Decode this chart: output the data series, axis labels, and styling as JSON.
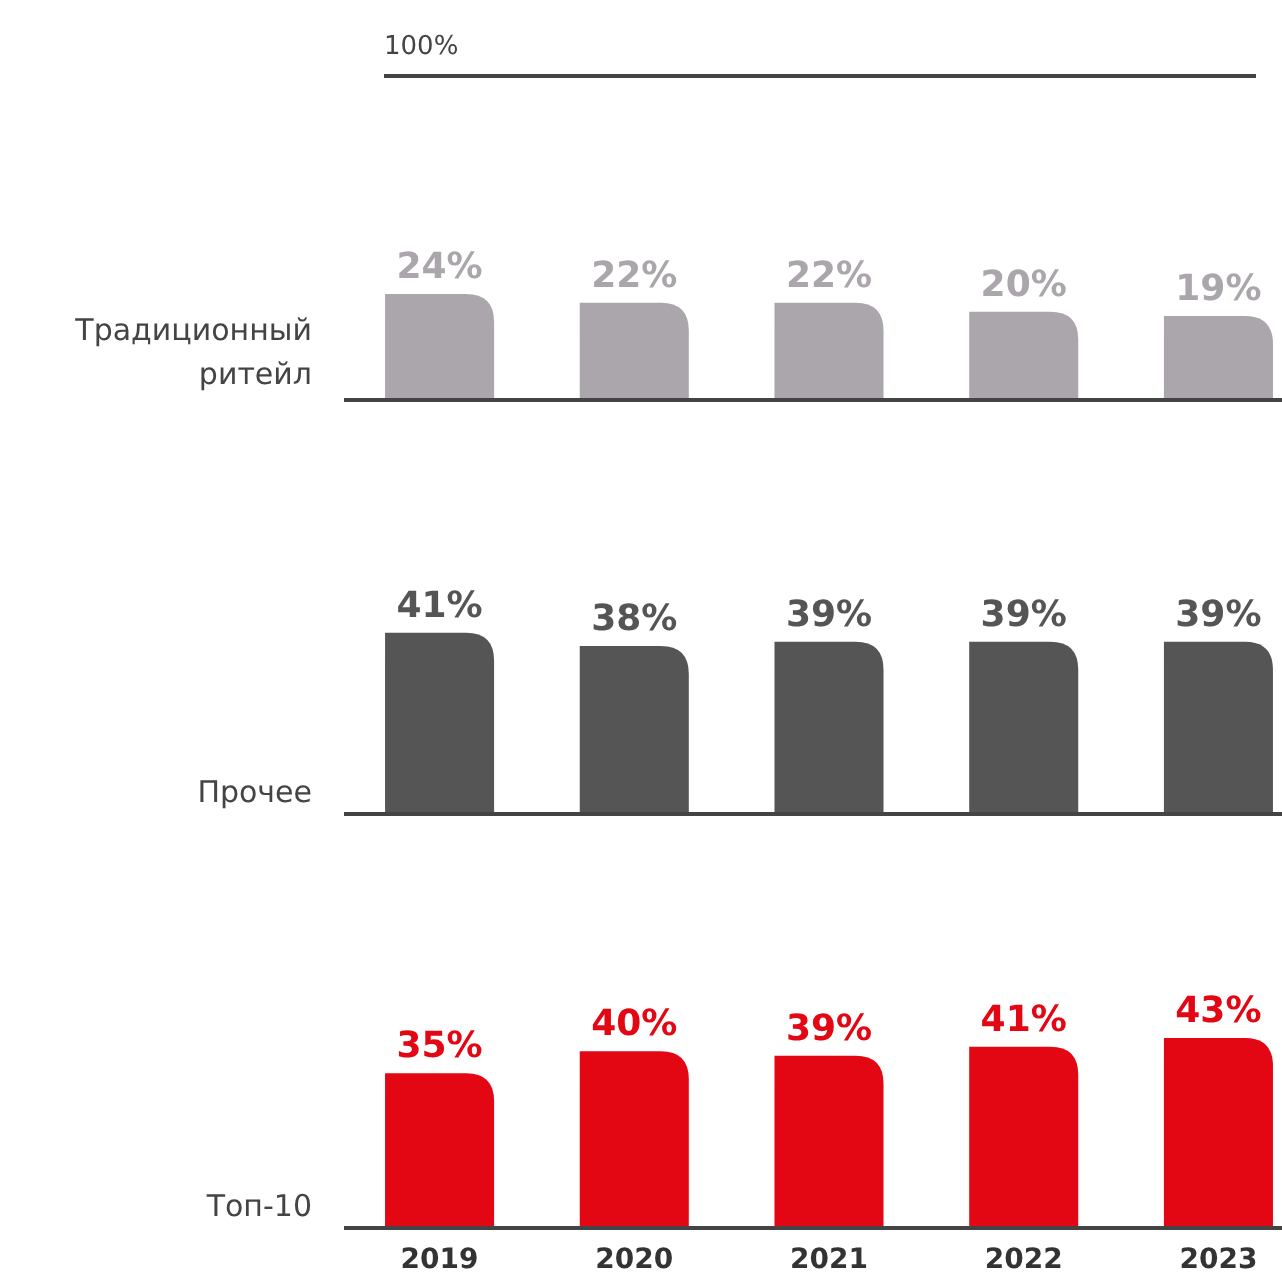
{
  "chart_data": [
    {
      "type": "bar",
      "ylabel": "Традиционный ритейл",
      "categories": [
        "2019",
        "2020",
        "2021",
        "2022",
        "2023"
      ],
      "values": [
        24,
        22,
        22,
        20,
        19
      ],
      "value_labels": [
        "24%",
        "22%",
        "22%",
        "20%",
        "19%"
      ],
      "color": "#aba6ab",
      "tick_labels": false,
      "annotations": [
        "100%"
      ]
    },
    {
      "type": "bar",
      "ylabel": "Прочее",
      "categories": [
        "2019",
        "2020",
        "2021",
        "2022",
        "2023"
      ],
      "values": [
        41,
        38,
        39,
        39,
        39
      ],
      "value_labels": [
        "41%",
        "38%",
        "39%",
        "39%",
        "39%"
      ],
      "color": "#555555",
      "tick_labels": false
    },
    {
      "type": "bar",
      "ylabel": "Топ-10",
      "categories": [
        "2019",
        "2020",
        "2021",
        "2022",
        "2023"
      ],
      "values": [
        35,
        40,
        39,
        41,
        43
      ],
      "value_labels": [
        "35%",
        "40%",
        "39%",
        "41%",
        "43%"
      ],
      "color": "#e30613",
      "tick_labels": "x"
    }
  ]
}
